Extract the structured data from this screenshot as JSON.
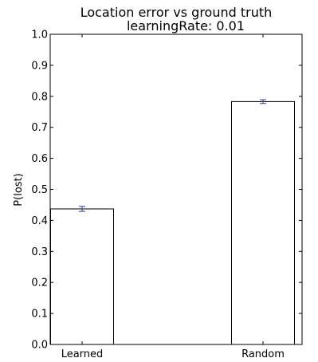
{
  "chart_data": {
    "type": "bar",
    "title": "Location error vs ground truth",
    "subtitle": "learningRate: 0.01",
    "xlabel": "",
    "ylabel": "P(lost)",
    "categories": [
      "Learned",
      "Random"
    ],
    "values": [
      0.437,
      0.783
    ],
    "errors": [
      0.008,
      0.006
    ],
    "ylim": [
      0.0,
      1.0
    ],
    "yticks": [
      "0.0",
      "0.1",
      "0.2",
      "0.3",
      "0.4",
      "0.5",
      "0.6",
      "0.7",
      "0.8",
      "0.9",
      "1.0"
    ],
    "grid": false,
    "colors": {
      "bar_fill": "#ffffff",
      "bar_edge": "#000000",
      "error_bar": "#1f3f9f",
      "axis": "#000000"
    }
  }
}
